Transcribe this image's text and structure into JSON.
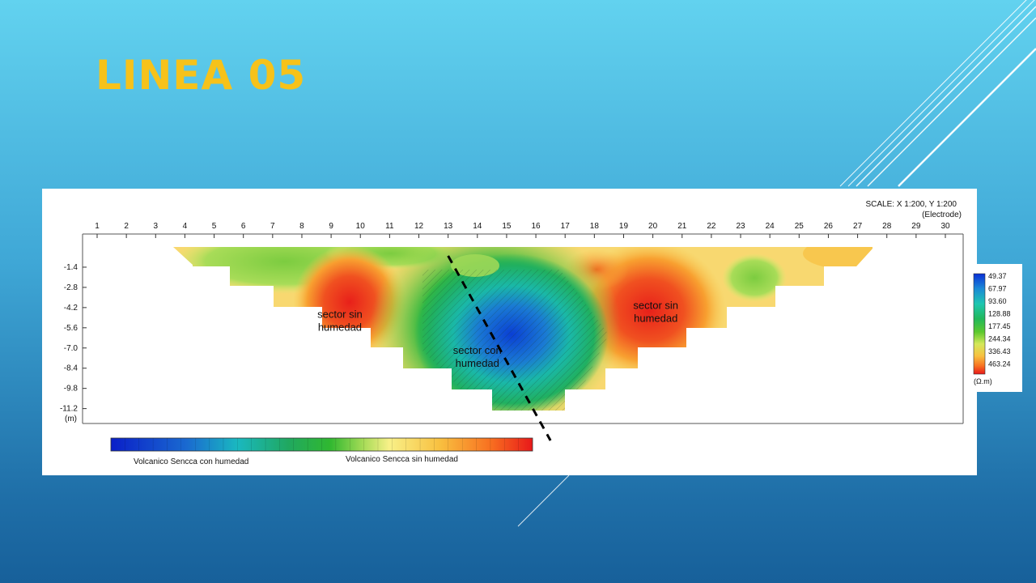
{
  "slide": {
    "title": "LINEA 05"
  },
  "chart_data": {
    "type": "heatmap",
    "title": "",
    "scale_label": "SCALE: X 1:200, Y 1:200",
    "x_unit_label": "(Electrode)",
    "y_unit_label": "(m)",
    "x_ticks": [
      1,
      2,
      3,
      4,
      5,
      6,
      7,
      8,
      9,
      10,
      11,
      12,
      13,
      14,
      15,
      16,
      17,
      18,
      19,
      20,
      21,
      22,
      23,
      24,
      25,
      26,
      27,
      28,
      29,
      30
    ],
    "y_ticks": [
      -1.4,
      -2.8,
      -4.2,
      -5.6,
      -7.0,
      -8.4,
      -9.8,
      -11.2
    ],
    "xlim": [
      1,
      30
    ],
    "ylim": [
      -12.4,
      0
    ],
    "legend": {
      "values": [
        "49.37",
        "67.97",
        "93.60",
        "128.88",
        "177.45",
        "244.34",
        "336.43",
        "463.24"
      ],
      "unit": "(Ω.m)",
      "colors": [
        "#0a2fd6",
        "#1a8ad6",
        "#1ec6b0",
        "#22b85a",
        "#5cc82e",
        "#d4e85a",
        "#f7e070",
        "#f8a020",
        "#e8261a"
      ]
    },
    "colorbar": {
      "left_label": "Volcanico Sencca con humedad",
      "right_label": "Volcanico Sencca sin humedad"
    },
    "annotations": [
      {
        "text_lines": [
          "sector sin",
          "humedad"
        ],
        "x": 9.3,
        "y": -4.9
      },
      {
        "text_lines": [
          "sector sin",
          "humedad"
        ],
        "x": 20.1,
        "y": -4.3
      },
      {
        "text_lines": [
          "sector con",
          "humedad"
        ],
        "x": 14.0,
        "y": -7.4
      }
    ],
    "fault_line": {
      "x": [
        13.0,
        16.5
      ],
      "y": [
        -1.4,
        -12.4
      ]
    }
  }
}
